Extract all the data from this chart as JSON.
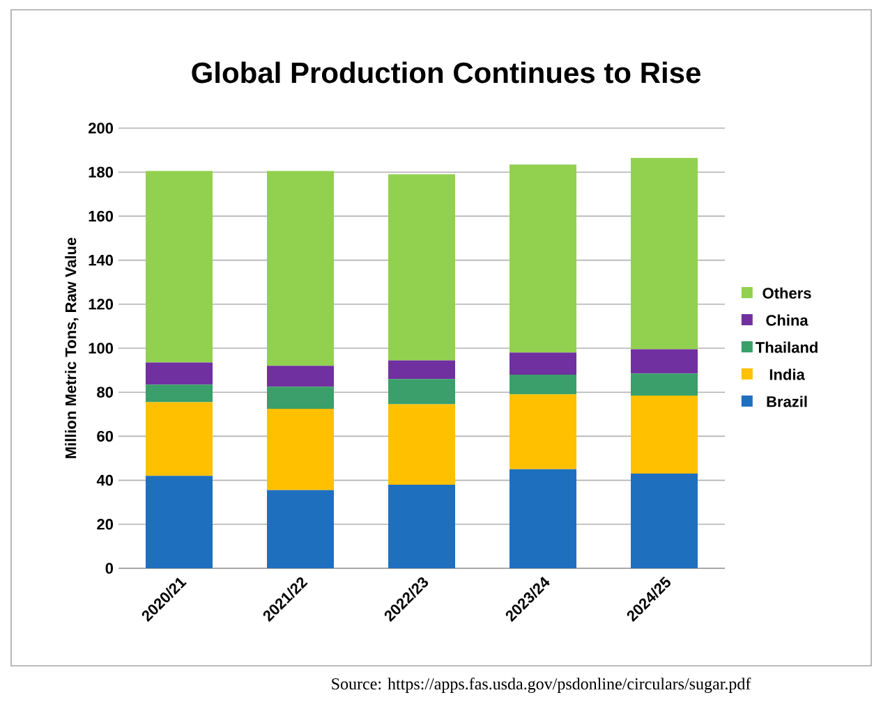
{
  "chart_data": {
    "type": "bar",
    "stacked": true,
    "title": "Global Production Continues to Rise",
    "ylabel": "Million Metric Tons, Raw Value",
    "categories": [
      "2020/21",
      "2021/22",
      "2022/23",
      "2023/24",
      "2024/25"
    ],
    "series": [
      {
        "name": "Brazil",
        "color": "#1f6fbf",
        "values": [
          42,
          35.5,
          38,
          45,
          43
        ]
      },
      {
        "name": "India",
        "color": "#ffc000",
        "values": [
          33.5,
          37,
          36.5,
          34,
          35.5
        ]
      },
      {
        "name": "Thailand",
        "color": "#3a9f6a",
        "values": [
          8,
          10,
          11.5,
          9,
          10
        ]
      },
      {
        "name": "China",
        "color": "#7030a0",
        "values": [
          10,
          9.5,
          8.5,
          10,
          11
        ]
      },
      {
        "name": "Others",
        "color": "#92d050",
        "values": [
          87,
          88.5,
          84.5,
          85.5,
          87
        ]
      }
    ],
    "ylim": [
      0,
      200
    ],
    "yticks": [
      0,
      20,
      40,
      60,
      80,
      100,
      120,
      140,
      160,
      180,
      200
    ],
    "grid": "y",
    "legend": "right",
    "annotations": [
      "Source: https://apps.fas.usda.gov/psdonline/circulars/sugar.pdf"
    ]
  }
}
